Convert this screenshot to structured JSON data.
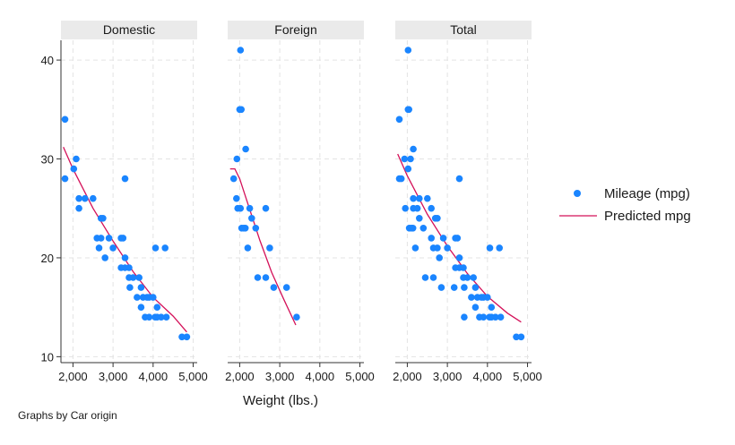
{
  "chart_data": {
    "type": "scatter",
    "xlabel": "Weight (lbs.)",
    "ylabel": "",
    "xlim": [
      1700,
      5100
    ],
    "ylim": [
      9.4,
      42
    ],
    "xticks": [
      2000,
      3000,
      4000,
      5000
    ],
    "xtick_labels": [
      "2,000",
      "3,000",
      "4,000",
      "5,000"
    ],
    "yticks": [
      10,
      20,
      30,
      40
    ],
    "ytick_labels": [
      "10",
      "20",
      "30",
      "40"
    ],
    "grid": true,
    "legend_position": "right",
    "legend": [
      {
        "label": "Mileage (mpg)",
        "type": "marker",
        "color": "#1a85ff"
      },
      {
        "label": "Predicted mpg",
        "type": "line",
        "color": "#d41159"
      }
    ],
    "note": "Graphs by Car origin",
    "panels": [
      {
        "title": "Domestic",
        "points": [
          [
            1800,
            34
          ],
          [
            1800,
            28
          ],
          [
            2020,
            29
          ],
          [
            2080,
            30
          ],
          [
            2150,
            26
          ],
          [
            2150,
            25
          ],
          [
            2300,
            26
          ],
          [
            2500,
            26
          ],
          [
            2600,
            22
          ],
          [
            2650,
            21
          ],
          [
            2700,
            24
          ],
          [
            2750,
            24
          ],
          [
            2700,
            22
          ],
          [
            2800,
            20
          ],
          [
            2900,
            22
          ],
          [
            3000,
            21
          ],
          [
            3200,
            22
          ],
          [
            3200,
            19
          ],
          [
            3250,
            22
          ],
          [
            3300,
            20
          ],
          [
            3300,
            19
          ],
          [
            3300,
            28
          ],
          [
            3400,
            18
          ],
          [
            3420,
            17
          ],
          [
            3400,
            19
          ],
          [
            3500,
            18
          ],
          [
            3600,
            16
          ],
          [
            3650,
            18
          ],
          [
            3700,
            17
          ],
          [
            3700,
            15
          ],
          [
            3750,
            16
          ],
          [
            3800,
            14
          ],
          [
            3850,
            16
          ],
          [
            3900,
            14
          ],
          [
            3900,
            16
          ],
          [
            4000,
            16
          ],
          [
            4050,
            14
          ],
          [
            4060,
            21
          ],
          [
            4100,
            15
          ],
          [
            4100,
            14
          ],
          [
            4200,
            14
          ],
          [
            4300,
            21
          ],
          [
            4330,
            14
          ],
          [
            4720,
            12
          ],
          [
            4840,
            12
          ]
        ],
        "fit": [
          [
            1760,
            31.2
          ],
          [
            2000,
            29.0
          ],
          [
            2500,
            25.0
          ],
          [
            3000,
            21.7
          ],
          [
            3500,
            18.6
          ],
          [
            4000,
            16.0
          ],
          [
            4500,
            14.1
          ],
          [
            4840,
            12.5
          ]
        ]
      },
      {
        "title": "Foreign",
        "points": [
          [
            2020,
            41
          ],
          [
            2040,
            35
          ],
          [
            2000,
            35
          ],
          [
            1930,
            30
          ],
          [
            1850,
            28
          ],
          [
            1920,
            26
          ],
          [
            1950,
            25
          ],
          [
            2020,
            25
          ],
          [
            2150,
            31
          ],
          [
            2250,
            25
          ],
          [
            2050,
            23
          ],
          [
            2100,
            23
          ],
          [
            2300,
            24
          ],
          [
            2400,
            23
          ],
          [
            2200,
            21
          ],
          [
            2140,
            23
          ],
          [
            2650,
            25
          ],
          [
            2750,
            21
          ],
          [
            2450,
            18
          ],
          [
            2650,
            18
          ],
          [
            2850,
            17
          ],
          [
            3170,
            17
          ],
          [
            3420,
            14
          ]
        ],
        "fit": [
          [
            1760,
            29.0
          ],
          [
            1880,
            29.0
          ],
          [
            2000,
            28.0
          ],
          [
            2200,
            25.5
          ],
          [
            2500,
            21.8
          ],
          [
            2800,
            18.5
          ],
          [
            3100,
            15.8
          ],
          [
            3400,
            13.2
          ]
        ]
      },
      {
        "title": "Total",
        "points": [
          [
            1800,
            34
          ],
          [
            2020,
            41
          ],
          [
            1800,
            28
          ],
          [
            2020,
            35
          ],
          [
            2040,
            35
          ],
          [
            1930,
            30
          ],
          [
            2080,
            30
          ],
          [
            2020,
            29
          ],
          [
            2150,
            31
          ],
          [
            1850,
            28
          ],
          [
            2150,
            26
          ],
          [
            2300,
            26
          ],
          [
            1950,
            25
          ],
          [
            2150,
            25
          ],
          [
            2250,
            25
          ],
          [
            2500,
            26
          ],
          [
            2600,
            25
          ],
          [
            2600,
            22
          ],
          [
            2050,
            23
          ],
          [
            2100,
            23
          ],
          [
            2300,
            24
          ],
          [
            2400,
            23
          ],
          [
            2200,
            21
          ],
          [
            2140,
            23
          ],
          [
            2700,
            24
          ],
          [
            2750,
            24
          ],
          [
            2650,
            21
          ],
          [
            2750,
            21
          ],
          [
            2800,
            20
          ],
          [
            2900,
            22
          ],
          [
            3000,
            21
          ],
          [
            3200,
            22
          ],
          [
            3250,
            22
          ],
          [
            3300,
            20
          ],
          [
            3300,
            28
          ],
          [
            2450,
            18
          ],
          [
            2650,
            18
          ],
          [
            2850,
            17
          ],
          [
            3170,
            17
          ],
          [
            3200,
            19
          ],
          [
            3300,
            19
          ],
          [
            3400,
            18
          ],
          [
            3420,
            17
          ],
          [
            3400,
            19
          ],
          [
            3420,
            14
          ],
          [
            3500,
            18
          ],
          [
            3600,
            16
          ],
          [
            3650,
            18
          ],
          [
            3700,
            17
          ],
          [
            3700,
            15
          ],
          [
            3750,
            16
          ],
          [
            3800,
            14
          ],
          [
            3850,
            16
          ],
          [
            3900,
            14
          ],
          [
            3900,
            16
          ],
          [
            4000,
            16
          ],
          [
            4050,
            14
          ],
          [
            4060,
            21
          ],
          [
            4100,
            15
          ],
          [
            4100,
            14
          ],
          [
            4200,
            14
          ],
          [
            4300,
            21
          ],
          [
            4330,
            14
          ],
          [
            4720,
            12
          ],
          [
            4840,
            12
          ]
        ],
        "fit": [
          [
            1760,
            30.5
          ],
          [
            2000,
            28.3
          ],
          [
            2500,
            24.4
          ],
          [
            3000,
            21.2
          ],
          [
            3500,
            18.4
          ],
          [
            4000,
            16.1
          ],
          [
            4500,
            14.4
          ],
          [
            4840,
            13.5
          ]
        ]
      }
    ]
  }
}
